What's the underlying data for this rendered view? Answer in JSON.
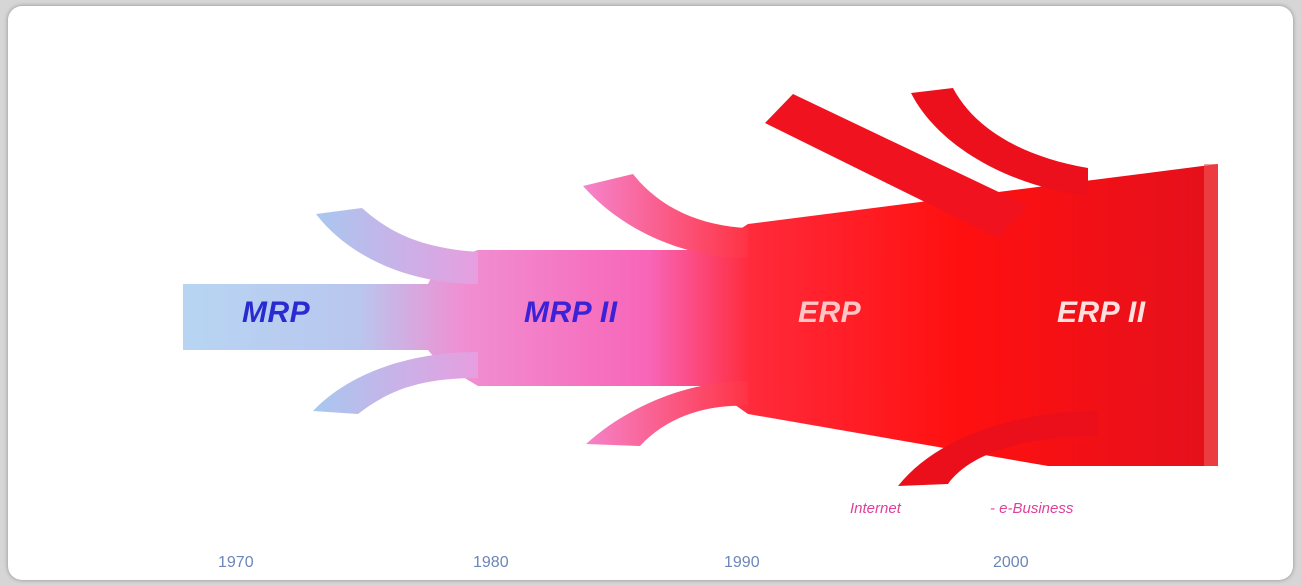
{
  "stages": [
    {
      "label": "MRP",
      "color": "#2a2ad0"
    },
    {
      "label": "MRP II",
      "color": "#3b22d6"
    },
    {
      "label": "ERP",
      "color": "#ffc6c6"
    },
    {
      "label": "ERP II",
      "color": "#ffe0e0"
    }
  ],
  "footer": {
    "internet": "Internet",
    "ebusiness": "- e-Business"
  },
  "years": [
    "1970",
    "1980",
    "1990",
    "2000"
  ],
  "colors": {
    "mrp_blue": "#a9cbf0",
    "mrp2_pink": "#f36cc4",
    "erp_red": "#ff1a1a",
    "erp2_red": "#e8121c"
  }
}
